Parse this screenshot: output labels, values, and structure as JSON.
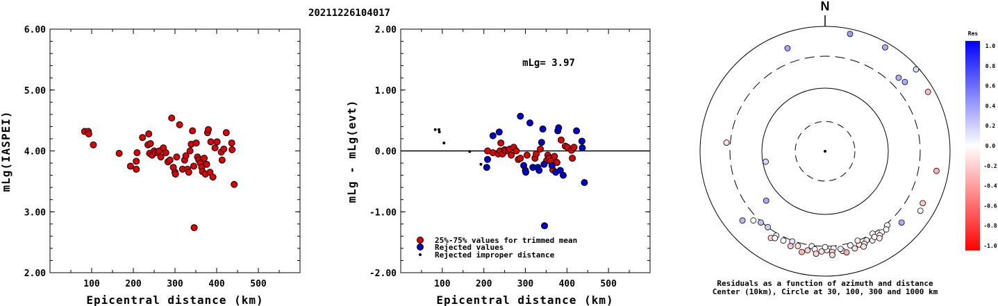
{
  "header": {
    "event_id": "20211226104017"
  },
  "chart_data": [
    {
      "type": "scatter",
      "title": "",
      "xlabel": "Epicentral distance (km)",
      "ylabel": "mLg(IASPEI)",
      "xlim": [
        0,
        600
      ],
      "ylim": [
        2.0,
        6.0
      ],
      "x_ticks": [
        "100",
        "200",
        "300",
        "400",
        "500"
      ],
      "y_ticks": [
        "2.00",
        "3.00",
        "4.00",
        "5.00",
        "6.00"
      ],
      "series": [
        {
          "color": "#dd0000",
          "points": [
            [
              83,
              4.32
            ],
            [
              92,
              4.32
            ],
            [
              93,
              4.28
            ],
            [
              104,
              4.1
            ],
            [
              166,
              3.96
            ],
            [
              193,
              3.75
            ],
            [
              207,
              3.83
            ],
            [
              207,
              3.7
            ],
            [
              209,
              3.97
            ],
            [
              222,
              4.22
            ],
            [
              235,
              4.1
            ],
            [
              237,
              4.28
            ],
            [
              239,
              3.96
            ],
            [
              241,
              4.12
            ],
            [
              245,
              3.93
            ],
            [
              250,
              4.0
            ],
            [
              253,
              3.97
            ],
            [
              259,
              3.97
            ],
            [
              262,
              4.0
            ],
            [
              266,
              3.9
            ],
            [
              272,
              4.05
            ],
            [
              278,
              3.97
            ],
            [
              283,
              3.82
            ],
            [
              288,
              3.85
            ],
            [
              292,
              4.54
            ],
            [
              296,
              3.73
            ],
            [
              300,
              3.65
            ],
            [
              301,
              3.62
            ],
            [
              304,
              3.9
            ],
            [
              311,
              4.43
            ],
            [
              318,
              3.7
            ],
            [
              323,
              3.85
            ],
            [
              326,
              3.92
            ],
            [
              330,
              3.7
            ],
            [
              333,
              3.65
            ],
            [
              336,
              4.0
            ],
            [
              339,
              4.11
            ],
            [
              342,
              4.33
            ],
            [
              345,
              3.75
            ],
            [
              346,
              2.74
            ],
            [
              351,
              4.13
            ],
            [
              354,
              3.9
            ],
            [
              357,
              3.85
            ],
            [
              361,
              3.8
            ],
            [
              364,
              3.73
            ],
            [
              366,
              3.66
            ],
            [
              370,
              3.88
            ],
            [
              373,
              3.62
            ],
            [
              376,
              3.78
            ],
            [
              378,
              4.3
            ],
            [
              380,
              4.35
            ],
            [
              384,
              3.65
            ],
            [
              386,
              4.15
            ],
            [
              391,
              3.57
            ],
            [
              396,
              4.05
            ],
            [
              401,
              4.15
            ],
            [
              411,
              3.98
            ],
            [
              413,
              3.85
            ],
            [
              417,
              4.03
            ],
            [
              423,
              4.3
            ],
            [
              436,
              4.13
            ],
            [
              437,
              4.02
            ],
            [
              442,
              3.45
            ]
          ]
        }
      ]
    },
    {
      "type": "scatter",
      "title": "",
      "annotation": "mLg= 3.97",
      "xlabel": "Epicentral distance (km)",
      "ylabel": "mLg - mLg(evt)",
      "xlim": [
        0,
        600
      ],
      "ylim": [
        -2.0,
        2.0
      ],
      "x_ticks": [
        "100",
        "200",
        "300",
        "400",
        "500"
      ],
      "y_ticks": [
        "-2.00",
        "-1.00",
        "0.00",
        "1.00",
        "2.00"
      ],
      "reference_line": 0.0,
      "legend_position": "bottom-left",
      "series": [
        {
          "name": "25%-75% values for trimmed mean",
          "color": "#dd0000",
          "points": [
            [
              209,
              0.0
            ],
            [
              222,
              -0.03
            ],
            [
              235,
              -0.05
            ],
            [
              239,
              0.0
            ],
            [
              241,
              0.13
            ],
            [
              245,
              -0.05
            ],
            [
              250,
              0.02
            ],
            [
              253,
              0.0
            ],
            [
              259,
              0.0
            ],
            [
              262,
              0.03
            ],
            [
              266,
              -0.07
            ],
            [
              272,
              0.06
            ],
            [
              278,
              0.0
            ],
            [
              283,
              -0.14
            ],
            [
              288,
              -0.12
            ],
            [
              304,
              -0.07
            ],
            [
              323,
              -0.12
            ],
            [
              326,
              -0.05
            ],
            [
              336,
              0.03
            ],
            [
              351,
              -0.16
            ],
            [
              354,
              -0.07
            ],
            [
              357,
              -0.12
            ],
            [
              361,
              -0.17
            ],
            [
              366,
              -0.31
            ],
            [
              370,
              -0.09
            ],
            [
              376,
              -0.19
            ],
            [
              386,
              0.18
            ],
            [
              396,
              0.08
            ],
            [
              401,
              0.06
            ],
            [
              411,
              0.01
            ],
            [
              413,
              -0.12
            ],
            [
              417,
              0.06
            ]
          ]
        },
        {
          "name": "Rejected values",
          "color": "#0000cc",
          "points": [
            [
              207,
              -0.27
            ],
            [
              209,
              -0.14
            ],
            [
              222,
              0.25
            ],
            [
              237,
              0.31
            ],
            [
              288,
              0.57
            ],
            [
              296,
              -0.24
            ],
            [
              300,
              -0.32
            ],
            [
              301,
              -0.35
            ],
            [
              311,
              0.46
            ],
            [
              318,
              -0.27
            ],
            [
              330,
              -0.27
            ],
            [
              333,
              -0.32
            ],
            [
              339,
              0.14
            ],
            [
              342,
              0.36
            ],
            [
              345,
              -0.22
            ],
            [
              346,
              -1.23
            ],
            [
              364,
              -0.24
            ],
            [
              373,
              -0.35
            ],
            [
              378,
              0.33
            ],
            [
              380,
              0.38
            ],
            [
              384,
              -0.32
            ],
            [
              391,
              -0.4
            ],
            [
              423,
              0.33
            ],
            [
              436,
              0.16
            ],
            [
              437,
              0.05
            ],
            [
              442,
              -0.52
            ]
          ]
        },
        {
          "name": "Rejected improper distance",
          "color": "#000000",
          "points": [
            [
              83,
              0.35
            ],
            [
              92,
              0.35
            ],
            [
              93,
              0.31
            ],
            [
              104,
              0.13
            ],
            [
              166,
              -0.01
            ],
            [
              193,
              -0.22
            ]
          ]
        }
      ]
    },
    {
      "type": "scatter",
      "subtype": "polar",
      "north_label": "N",
      "caption_line1": "Residuals as a function of azimuth and distance",
      "caption_line2": "Center (10km), Circle at 30, 100, 300 and 1000 km",
      "colorbar": {
        "title": "Res",
        "ticks": [
          "1.0",
          "0.8",
          "0.6",
          "0.4",
          "0.2",
          "0.0",
          "-0.2",
          "-0.4",
          "-0.6",
          "-0.8",
          "-1.0"
        ],
        "max_color": "#0000ff",
        "mid_color": "#ffffff",
        "min_color": "#ff0000"
      },
      "points": [
        {
          "az": 340,
          "dist_km": 540,
          "res": 0.35
        },
        {
          "az": 12,
          "dist_km": 820,
          "res": 0.38
        },
        {
          "az": 30,
          "dist_km": 820,
          "res": 0.33
        },
        {
          "az": 48,
          "dist_km": 900,
          "res": 0.14
        },
        {
          "az": 45,
          "dist_km": 430,
          "res": 0.32
        },
        {
          "az": 49,
          "dist_km": 460,
          "res": 0.33
        },
        {
          "az": 60,
          "dist_km": 780,
          "res": -0.25
        },
        {
          "az": 275,
          "dist_km": 350,
          "res": -0.13
        },
        {
          "az": 260,
          "dist_km": 90,
          "res": 0.16
        },
        {
          "az": 230,
          "dist_km": 160,
          "res": 0.34
        },
        {
          "az": 230,
          "dist_km": 500,
          "res": 0.28
        },
        {
          "az": 100,
          "dist_km": 620,
          "res": -0.3
        },
        {
          "az": 118,
          "dist_km": 560,
          "res": -0.22
        },
        {
          "az": 122,
          "dist_km": 600,
          "res": -0.06
        },
        {
          "az": 150,
          "dist_km": 300,
          "res": 0.05
        },
        {
          "az": 210,
          "dist_km": 330,
          "res": 0.03
        },
        {
          "az": 222,
          "dist_km": 310,
          "res": 0.25
        },
        {
          "az": 217,
          "dist_km": 300,
          "res": 0.2
        },
        {
          "az": 200,
          "dist_km": 310,
          "res": 0.12
        },
        {
          "az": 188,
          "dist_km": 310,
          "res": 0.05
        },
        {
          "az": 175,
          "dist_km": 330,
          "res": -0.05
        },
        {
          "az": 165,
          "dist_km": 330,
          "res": 0.02
        },
        {
          "az": 155,
          "dist_km": 340,
          "res": 0.09
        },
        {
          "az": 145,
          "dist_km": 350,
          "res": 0.03
        },
        {
          "az": 140,
          "dist_km": 320,
          "res": 0.06
        },
        {
          "az": 133,
          "dist_km": 440,
          "res": 0.32
        },
        {
          "az": 200,
          "dist_km": 380,
          "res": -0.22
        },
        {
          "az": 190,
          "dist_km": 375,
          "res": -0.18
        },
        {
          "az": 182,
          "dist_km": 370,
          "res": -0.12
        },
        {
          "az": 176,
          "dist_km": 380,
          "res": -0.16
        },
        {
          "az": 170,
          "dist_km": 385,
          "res": -0.07
        },
        {
          "az": 163,
          "dist_km": 390,
          "res": -0.12
        },
        {
          "az": 157,
          "dist_km": 375,
          "res": -0.12
        },
        {
          "az": 152,
          "dist_km": 380,
          "res": -0.07
        },
        {
          "az": 147,
          "dist_km": 370,
          "res": -0.05
        },
        {
          "az": 205,
          "dist_km": 345,
          "res": -0.03
        },
        {
          "az": 196,
          "dist_km": 345,
          "res": -0.14
        },
        {
          "az": 186,
          "dist_km": 345,
          "res": 0.0
        },
        {
          "az": 179,
          "dist_km": 350,
          "res": -0.05
        },
        {
          "az": 171,
          "dist_km": 350,
          "res": 0.06
        },
        {
          "az": 160,
          "dist_km": 355,
          "res": -0.09
        },
        {
          "az": 150,
          "dist_km": 350,
          "res": 0.0
        },
        {
          "az": 212,
          "dist_km": 400,
          "res": -0.19
        },
        {
          "az": 185,
          "dist_km": 410,
          "res": -0.17
        },
        {
          "az": 168,
          "dist_km": 420,
          "res": -0.31
        },
        {
          "az": 158,
          "dist_km": 410,
          "res": -0.12
        },
        {
          "az": 148,
          "dist_km": 405,
          "res": -0.09
        },
        {
          "az": 193,
          "dist_km": 420,
          "res": -0.27
        },
        {
          "az": 176,
          "dist_km": 430,
          "res": -0.14
        },
        {
          "az": 210,
          "dist_km": 370,
          "res": 0.0
        },
        {
          "az": 142,
          "dist_km": 355,
          "res": 0.03
        },
        {
          "az": 226,
          "dist_km": 360,
          "res": 0.0
        },
        {
          "az": 160,
          "dist_km": 300,
          "res": -0.1
        },
        {
          "az": 180,
          "dist_km": 310,
          "res": 0.0
        }
      ]
    }
  ]
}
